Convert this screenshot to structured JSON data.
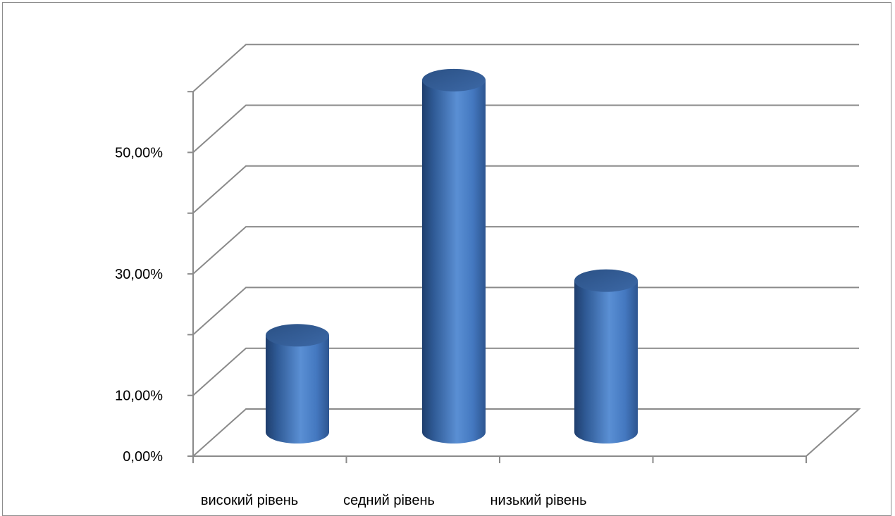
{
  "chart_data": {
    "type": "bar",
    "style": "3d-cylinder",
    "categories": [
      "високий рівень",
      "седний рівень",
      "низький рівень"
    ],
    "values": [
      17,
      59,
      26
    ],
    "y_tick_labels": [
      "0,00%",
      "10,00%",
      "30,00%",
      "50,00%"
    ],
    "ylim": [
      0,
      60
    ],
    "grid": true,
    "legend": "none",
    "bar_color": "#4a7ebb",
    "title": "",
    "xlabel": "",
    "ylabel": ""
  }
}
